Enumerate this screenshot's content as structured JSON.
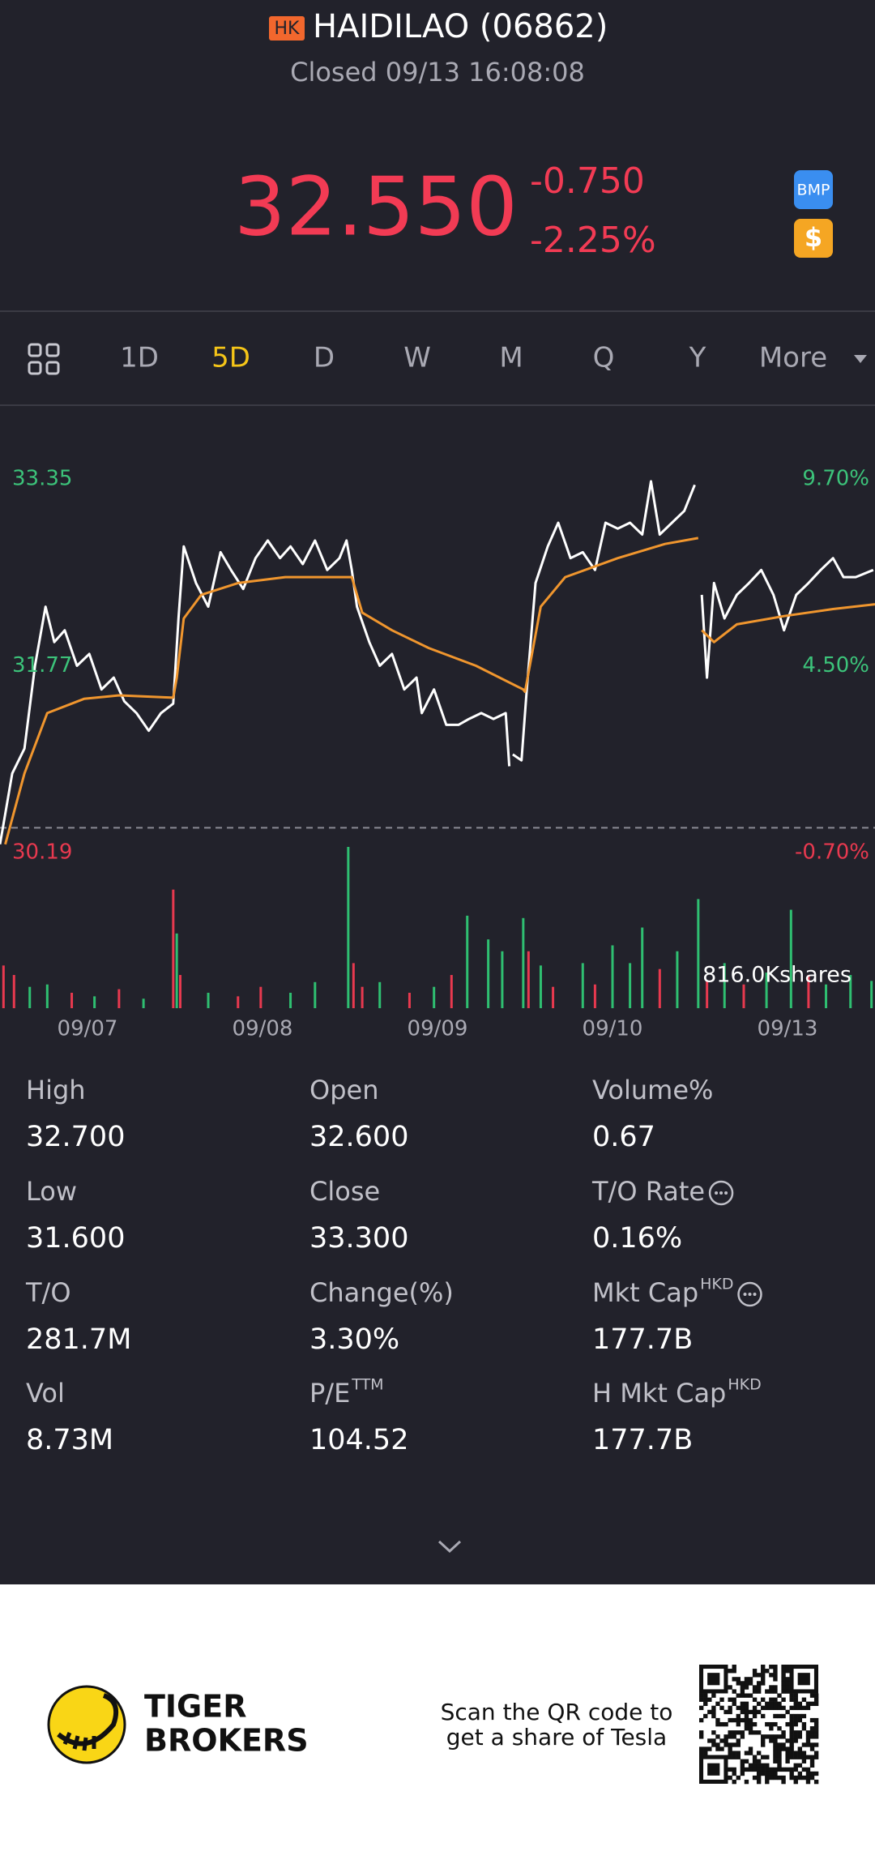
{
  "header": {
    "market_badge": "HK",
    "title": "HAIDILAO (06862)",
    "status": "Closed 09/13 16:08:08",
    "price": "32.550",
    "change": "-0.750",
    "change_pct": "-2.25%",
    "badges": [
      "BMP",
      "$"
    ]
  },
  "tabs": {
    "items": [
      "1D",
      "5D",
      "D",
      "W",
      "M",
      "Q",
      "Y",
      "More"
    ],
    "active": 1
  },
  "chart_data": [
    {
      "type": "line",
      "reference": 30.4,
      "xlim": [
        0,
        5
      ],
      "ylim": [
        30.19,
        33.35
      ],
      "y2lim": [
        -0.7,
        9.7
      ],
      "yticks": [
        33.35,
        31.77,
        30.19
      ],
      "y2ticks": [
        {
          "value": 9.7,
          "label": "9.70%"
        },
        {
          "value": 4.5,
          "label": "4.50%"
        },
        {
          "value": -0.7,
          "label": "-0.70%"
        }
      ],
      "xticks": [
        {
          "value": 0.5,
          "label": "09/07"
        },
        {
          "value": 1.5,
          "label": "09/08"
        },
        {
          "value": 2.5,
          "label": "09/09"
        },
        {
          "value": 3.5,
          "label": "09/10"
        },
        {
          "value": 4.5,
          "label": "09/13"
        }
      ],
      "series": [
        {
          "color": "#ffffff",
          "x": [
            0.0,
            0.07,
            0.14,
            0.2,
            0.26,
            0.31,
            0.37,
            0.44,
            0.51,
            0.58,
            0.65,
            0.71,
            0.78,
            0.85,
            0.92,
            0.99,
            1.02,
            1.05,
            1.12,
            1.19,
            1.26,
            1.32,
            1.39,
            1.46,
            1.53,
            1.6,
            1.66,
            1.73,
            1.8,
            1.87,
            1.94,
            1.98,
            2.01,
            2.04,
            2.11,
            2.17,
            2.24,
            2.31,
            2.38,
            2.41,
            2.48,
            2.55,
            2.62,
            2.68,
            2.75,
            2.82,
            2.89,
            2.91,
            2.92,
            2.93,
            2.98,
            3.01,
            3.06,
            3.13,
            3.19,
            3.26,
            3.33,
            3.4,
            3.46,
            3.53,
            3.6,
            3.67,
            3.72,
            3.77,
            3.84,
            3.91,
            3.97,
            3.99,
            4.01,
            4.04,
            4.08,
            4.14,
            4.21,
            4.28,
            4.35,
            4.42,
            4.48,
            4.55,
            4.62,
            4.69,
            4.76,
            4.82,
            4.89,
            4.99
          ],
          "values": [
            30.26,
            30.86,
            31.07,
            31.77,
            32.27,
            31.97,
            32.07,
            31.77,
            31.87,
            31.57,
            31.67,
            31.47,
            31.37,
            31.22,
            31.37,
            31.45,
            32.17,
            32.78,
            32.47,
            32.27,
            32.73,
            32.58,
            32.42,
            32.68,
            32.83,
            32.68,
            32.78,
            32.63,
            32.83,
            32.58,
            32.68,
            32.83,
            32.58,
            32.27,
            31.97,
            31.77,
            31.87,
            31.57,
            31.67,
            31.37,
            31.57,
            31.27,
            31.27,
            31.32,
            31.37,
            31.32,
            31.37,
            30.92,
            null,
            31.02,
            30.97,
            31.57,
            32.47,
            32.78,
            32.98,
            32.68,
            32.73,
            32.58,
            32.98,
            32.93,
            32.98,
            32.88,
            33.33,
            32.88,
            32.98,
            33.08,
            33.3,
            null,
            32.37,
            31.67,
            32.47,
            32.17,
            32.37,
            32.47,
            32.58,
            32.37,
            32.07,
            32.37,
            32.47,
            32.58,
            32.68,
            32.52,
            32.52,
            32.58
          ]
        },
        {
          "color": "#f0962e",
          "x": [
            0.03,
            0.14,
            0.27,
            0.48,
            0.68,
            0.99,
            1.01,
            1.05,
            1.15,
            1.36,
            1.63,
            1.97,
            2.01,
            2.07,
            2.24,
            2.45,
            2.72,
            2.99,
            3.0,
            3.09,
            3.23,
            3.53,
            3.8,
            3.99,
            4.0,
            4.01,
            4.08,
            4.21,
            4.48,
            4.76,
            5.0
          ],
          "values": [
            30.26,
            30.86,
            31.37,
            31.49,
            31.52,
            31.5,
            31.67,
            32.17,
            32.37,
            32.47,
            32.52,
            32.52,
            32.52,
            32.22,
            32.07,
            31.92,
            31.77,
            31.57,
            31.55,
            32.27,
            32.52,
            32.68,
            32.8,
            32.85,
            null,
            32.07,
            31.97,
            32.12,
            32.19,
            32.25,
            32.29
          ]
        }
      ]
    },
    {
      "type": "bar",
      "xlim": [
        0,
        5
      ],
      "ylim": [
        0,
        816
      ],
      "yticks": [
        {
          "value": 816,
          "label": "816.0Kshares"
        }
      ],
      "x": [
        0.02,
        0.08,
        0.17,
        0.27,
        0.41,
        0.54,
        0.68,
        0.82,
        0.99,
        1.01,
        1.03,
        1.19,
        1.36,
        1.49,
        1.66,
        1.8,
        1.99,
        2.02,
        2.07,
        2.17,
        2.34,
        2.48,
        2.58,
        2.67,
        2.79,
        2.87,
        2.99,
        3.02,
        3.09,
        3.16,
        3.33,
        3.4,
        3.5,
        3.6,
        3.67,
        3.77,
        3.87,
        3.99,
        4.04,
        4.14,
        4.25,
        4.38,
        4.52,
        4.62,
        4.72,
        4.86,
        4.98
      ],
      "values": [
        216,
        168,
        108,
        120,
        78,
        60,
        96,
        48,
        600,
        378,
        168,
        78,
        60,
        108,
        78,
        132,
        816,
        228,
        108,
        132,
        78,
        108,
        168,
        468,
        348,
        288,
        456,
        288,
        216,
        108,
        228,
        120,
        318,
        228,
        408,
        198,
        288,
        552,
        138,
        228,
        120,
        180,
        498,
        168,
        120,
        168,
        138
      ],
      "colors": [
        "#e8394f",
        "#e8394f",
        "#2fbf71",
        "#2fbf71",
        "#e8394f",
        "#2fbf71",
        "#e8394f",
        "#2fbf71",
        "#e8394f",
        "#2fbf71",
        "#e8394f",
        "#2fbf71",
        "#e8394f",
        "#e8394f",
        "#2fbf71",
        "#2fbf71",
        "#2fbf71",
        "#e8394f",
        "#e8394f",
        "#2fbf71",
        "#e8394f",
        "#2fbf71",
        "#e8394f",
        "#2fbf71",
        "#2fbf71",
        "#2fbf71",
        "#2fbf71",
        "#e8394f",
        "#2fbf71",
        "#e8394f",
        "#2fbf71",
        "#e8394f",
        "#2fbf71",
        "#2fbf71",
        "#2fbf71",
        "#e8394f",
        "#2fbf71",
        "#2fbf71",
        "#e8394f",
        "#2fbf71",
        "#e8394f",
        "#2fbf71",
        "#2fbf71",
        "#e8394f",
        "#2fbf71",
        "#2fbf71",
        "#2fbf71"
      ]
    }
  ],
  "stats": [
    {
      "label": "High",
      "value": "32.700"
    },
    {
      "label": "Open",
      "value": "32.600"
    },
    {
      "label": "Volume%",
      "value": "0.67"
    },
    {
      "label": "Low",
      "value": "31.600"
    },
    {
      "label": "Close",
      "value": "33.300"
    },
    {
      "label": "T/O Rate",
      "value": "0.16%",
      "info": true
    },
    {
      "label": "T/O",
      "value": "281.7M"
    },
    {
      "label": "Change(%)",
      "value": "3.30%"
    },
    {
      "label": "Mkt Cap",
      "sup": "HKD",
      "value": "177.7B",
      "info": true
    },
    {
      "label": "Vol",
      "value": "8.73M"
    },
    {
      "label": "P/E",
      "sup": "TTM",
      "value": "104.52"
    },
    {
      "label": "H Mkt Cap",
      "sup": "HKD",
      "value": "177.7B"
    }
  ],
  "footer": {
    "brand": [
      "TIGER",
      "BROKERS"
    ],
    "promo": [
      "Scan the QR code to",
      "get a share of Tesla"
    ]
  }
}
